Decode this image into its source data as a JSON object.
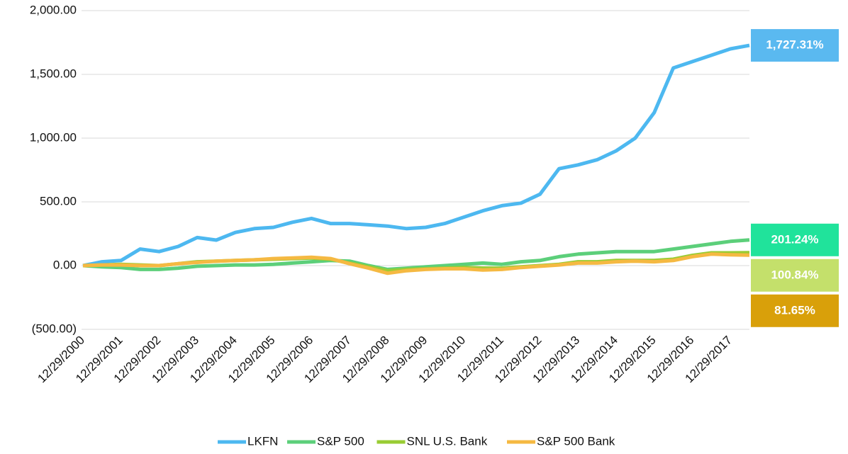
{
  "chart_data": {
    "type": "line",
    "categories": [
      "12/29/2000",
      null,
      "12/29/2001",
      null,
      "12/29/2002",
      null,
      "12/29/2003",
      null,
      "12/29/2004",
      null,
      "12/29/2005",
      null,
      "12/29/2006",
      null,
      "12/29/2007",
      null,
      "12/29/2008",
      null,
      "12/29/2009",
      null,
      "12/29/2010",
      null,
      "12/29/2011",
      null,
      "12/29/2012",
      null,
      "12/29/2013",
      null,
      "12/29/2014",
      null,
      "12/29/2015",
      null,
      "12/29/2016",
      null,
      "12/29/2017",
      null
    ],
    "series": [
      {
        "name": "LKFN",
        "color": "#4db8f0",
        "label_color": "#5ab9f0",
        "end_label": "1,727.31%",
        "values": [
          0,
          30,
          40,
          130,
          110,
          150,
          220,
          200,
          260,
          290,
          300,
          340,
          370,
          330,
          330,
          320,
          310,
          290,
          300,
          330,
          380,
          430,
          470,
          490,
          560,
          760,
          790,
          830,
          900,
          1000,
          1200,
          1550,
          1600,
          1650,
          1700,
          1727.31
        ]
      },
      {
        "name": "S&P 500",
        "color": "#5ccf7a",
        "label_color": "#20e39b",
        "end_label": "201.24%",
        "values": [
          0,
          -10,
          -15,
          -30,
          -30,
          -20,
          -5,
          0,
          5,
          5,
          10,
          20,
          30,
          40,
          35,
          0,
          -30,
          -20,
          -10,
          0,
          10,
          20,
          10,
          30,
          40,
          70,
          90,
          100,
          110,
          110,
          110,
          130,
          150,
          170,
          190,
          201.24
        ]
      },
      {
        "name": "SNL U.S. Bank",
        "color": "#99cc33",
        "label_color": "#c4e06b",
        "end_label": "100.84%",
        "values": [
          0,
          5,
          10,
          5,
          0,
          15,
          30,
          35,
          40,
          45,
          50,
          55,
          60,
          50,
          20,
          -10,
          -40,
          -30,
          -25,
          -20,
          -15,
          -20,
          -20,
          -10,
          0,
          10,
          30,
          30,
          40,
          40,
          40,
          50,
          80,
          100,
          100,
          100.84
        ]
      },
      {
        "name": "S&P 500 Bank",
        "color": "#f5b942",
        "label_color": "#d9a00a",
        "end_label": "81.65%",
        "values": [
          0,
          5,
          5,
          0,
          0,
          15,
          25,
          35,
          40,
          45,
          55,
          60,
          65,
          55,
          15,
          -20,
          -60,
          -40,
          -30,
          -25,
          -25,
          -35,
          -30,
          -15,
          -5,
          5,
          20,
          20,
          30,
          35,
          30,
          40,
          70,
          90,
          85,
          81.65
        ]
      }
    ],
    "ylim": [
      -500,
      2000
    ],
    "yticks": [
      {
        "value": -500,
        "label": "(500.00)"
      },
      {
        "value": 0,
        "label": "0.00"
      },
      {
        "value": 500,
        "label": "500.00"
      },
      {
        "value": 1000,
        "label": "1,000.00"
      },
      {
        "value": 1500,
        "label": "1,500.00"
      },
      {
        "value": 2000,
        "label": "2,000.00"
      }
    ],
    "grid": true,
    "legend": "bottom"
  }
}
